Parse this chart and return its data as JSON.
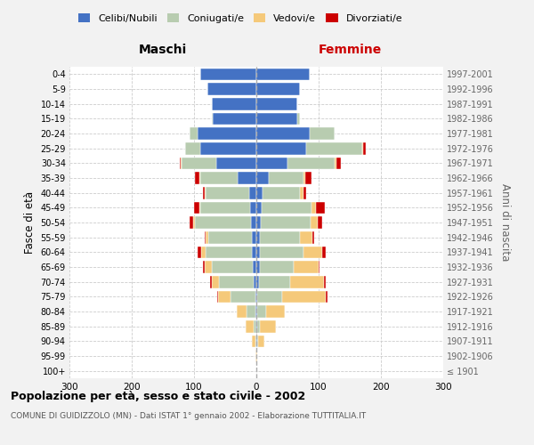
{
  "age_groups": [
    "100+",
    "95-99",
    "90-94",
    "85-89",
    "80-84",
    "75-79",
    "70-74",
    "65-69",
    "60-64",
    "55-59",
    "50-54",
    "45-49",
    "40-44",
    "35-39",
    "30-34",
    "25-29",
    "20-24",
    "15-19",
    "10-14",
    "5-9",
    "0-4"
  ],
  "birth_years": [
    "≤ 1901",
    "1902-1906",
    "1907-1911",
    "1912-1916",
    "1917-1921",
    "1922-1926",
    "1927-1931",
    "1932-1936",
    "1937-1941",
    "1942-1946",
    "1947-1951",
    "1952-1956",
    "1957-1961",
    "1962-1966",
    "1967-1971",
    "1972-1976",
    "1977-1981",
    "1982-1986",
    "1987-1991",
    "1992-1996",
    "1997-2001"
  ],
  "males": {
    "celibi": [
      0,
      0,
      0,
      0,
      1,
      2,
      5,
      6,
      7,
      7,
      9,
      10,
      12,
      30,
      65,
      90,
      95,
      70,
      72,
      78,
      90
    ],
    "coniugati": [
      0,
      0,
      2,
      5,
      15,
      40,
      55,
      65,
      75,
      70,
      90,
      80,
      70,
      60,
      55,
      25,
      12,
      2,
      0,
      0,
      0
    ],
    "vedovi": [
      0,
      1,
      5,
      12,
      15,
      20,
      12,
      12,
      7,
      4,
      3,
      2,
      1,
      1,
      1,
      0,
      0,
      0,
      0,
      0,
      0
    ],
    "divorziati": [
      0,
      0,
      0,
      0,
      1,
      1,
      2,
      2,
      5,
      2,
      5,
      8,
      3,
      7,
      2,
      0,
      0,
      0,
      0,
      0,
      0
    ]
  },
  "females": {
    "nubili": [
      0,
      0,
      1,
      1,
      1,
      2,
      4,
      5,
      6,
      5,
      7,
      8,
      10,
      20,
      50,
      80,
      85,
      65,
      65,
      70,
      85
    ],
    "coniugate": [
      0,
      0,
      2,
      5,
      15,
      40,
      50,
      55,
      70,
      65,
      80,
      80,
      60,
      55,
      75,
      90,
      40,
      5,
      0,
      0,
      0
    ],
    "vedove": [
      0,
      1,
      10,
      25,
      30,
      70,
      55,
      40,
      30,
      20,
      12,
      7,
      5,
      4,
      3,
      2,
      0,
      0,
      0,
      0,
      0
    ],
    "divorziate": [
      0,
      0,
      0,
      0,
      0,
      2,
      2,
      2,
      5,
      3,
      6,
      15,
      5,
      10,
      8,
      4,
      0,
      0,
      0,
      0,
      0
    ]
  },
  "colors": {
    "celibi": "#4472C4",
    "coniugati": "#B8CCB0",
    "vedovi": "#F5C97A",
    "divorziati": "#CC0000"
  },
  "xlim": 300,
  "title": "Popolazione per età, sesso e stato civile - 2002",
  "subtitle": "COMUNE DI GUIDIZZOLO (MN) - Dati ISTAT 1° gennaio 2002 - Elaborazione TUTTITALIA.IT",
  "ylabel_left": "Fasce di età",
  "ylabel_right": "Anni di nascita",
  "label_maschi": "Maschi",
  "label_femmine": "Femmine",
  "legend_labels": [
    "Celibi/Nubili",
    "Coniugati/e",
    "Vedovi/e",
    "Divorziati/e"
  ],
  "bg_color": "#F2F2F2",
  "plot_bg_color": "#FFFFFF"
}
